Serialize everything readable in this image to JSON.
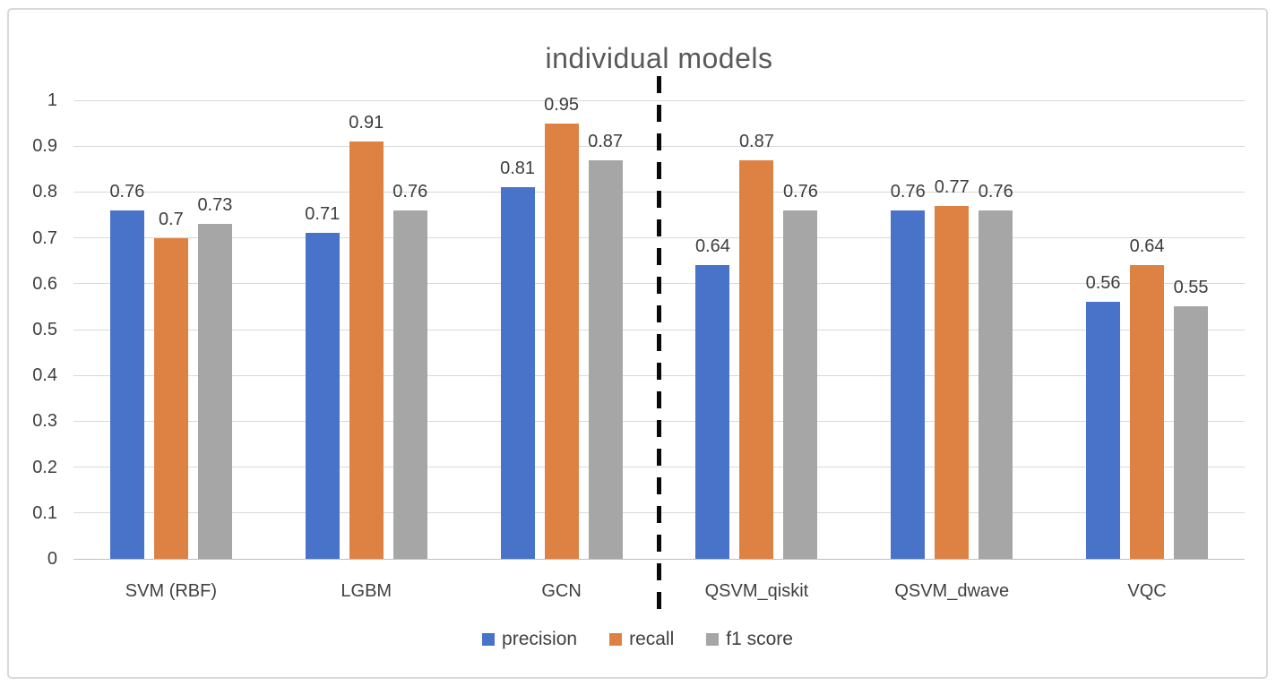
{
  "chart_data": {
    "type": "bar",
    "title": "individual models",
    "categories": [
      "SVM (RBF)",
      "LGBM",
      "GCN",
      "QSVM_qiskit",
      "QSVM_dwave",
      "VQC"
    ],
    "series": [
      {
        "name": "precision",
        "color": "#4973c8",
        "values": [
          0.76,
          0.71,
          0.81,
          0.64,
          0.76,
          0.56
        ]
      },
      {
        "name": "recall",
        "color": "#de8244",
        "values": [
          0.7,
          0.91,
          0.95,
          0.87,
          0.77,
          0.64
        ]
      },
      {
        "name": "f1 score",
        "color": "#a6a6a6",
        "values": [
          0.73,
          0.76,
          0.87,
          0.76,
          0.76,
          0.55
        ]
      }
    ],
    "ylim": [
      0,
      1
    ],
    "ytick_step": 0.1,
    "ytick_labels": [
      "0",
      "0.1",
      "0.2",
      "0.3",
      "0.4",
      "0.5",
      "0.6",
      "0.7",
      "0.8",
      "0.9",
      "1"
    ],
    "grid": true,
    "legend_position": "bottom",
    "data_labels_shown": true,
    "separator": {
      "after_category_index": 2,
      "style": "dashed",
      "color": "#0a0a0a"
    }
  },
  "colors": {
    "gridline": "#d9d9d9",
    "axis_line": "#bfbfbf",
    "title_text": "#595959",
    "label_text": "#404040",
    "figure_border": "#d9d9d9"
  }
}
